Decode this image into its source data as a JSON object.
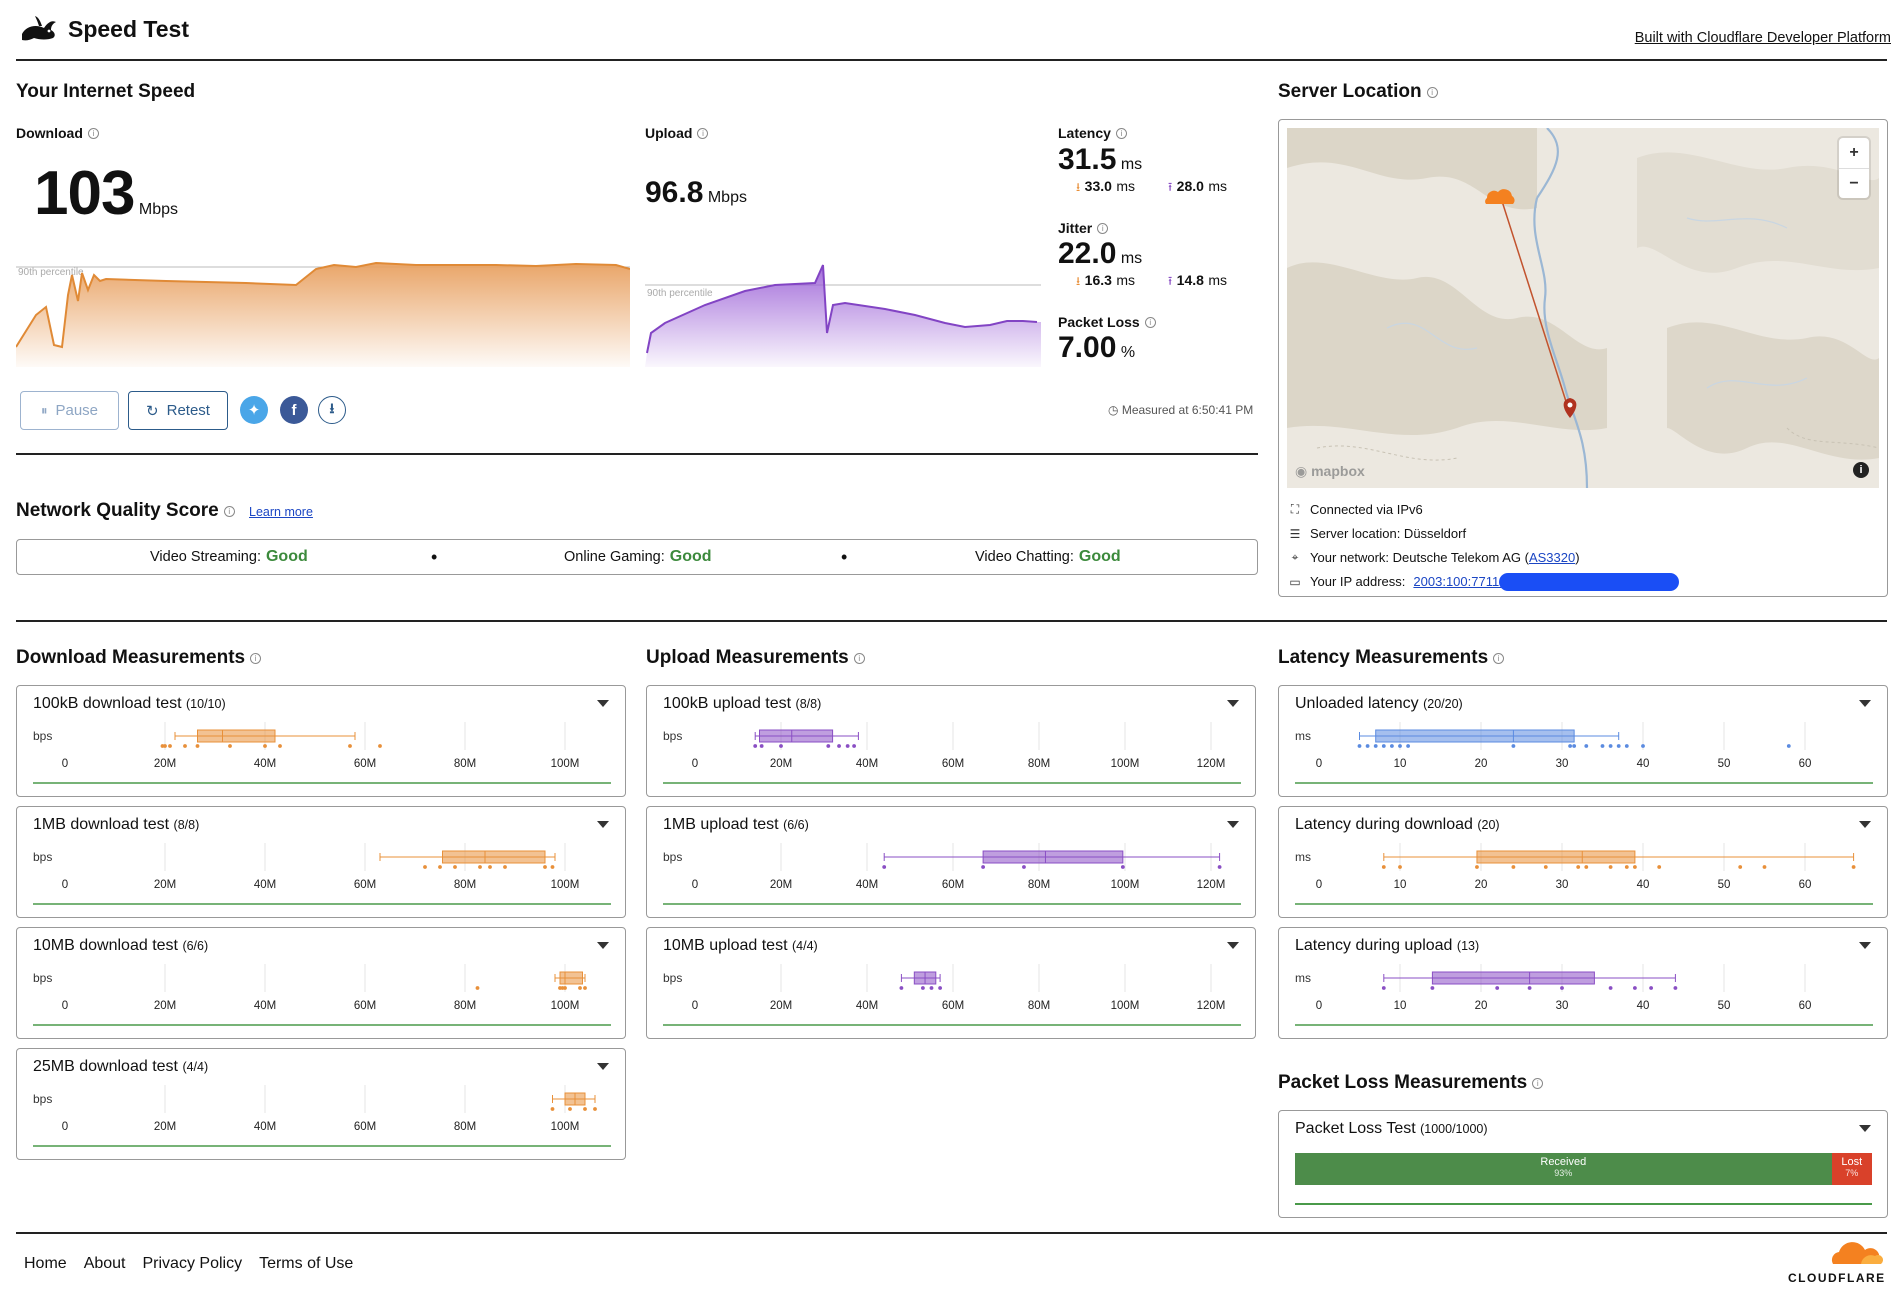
{
  "header": {
    "title": "Speed Test",
    "built_with": "Built with Cloudflare Developer Platform"
  },
  "speed": {
    "heading": "Your Internet Speed",
    "download": {
      "label": "Download",
      "value": "103",
      "unit": "Mbps",
      "p90_label": "90th percentile"
    },
    "upload": {
      "label": "Upload",
      "value": "96.8",
      "unit": "Mbps",
      "p90_label": "90th percentile"
    },
    "latency": {
      "label": "Latency",
      "value": "31.5",
      "unit": "ms",
      "down": "33.0",
      "up": "28.0",
      "sub_unit": "ms"
    },
    "jitter": {
      "label": "Jitter",
      "value": "22.0",
      "unit": "ms",
      "down": "16.3",
      "up": "14.8",
      "sub_unit": "ms"
    },
    "packet_loss": {
      "label": "Packet Loss",
      "value": "7.00",
      "unit": "%"
    },
    "measured_at": "Measured at 6:50:41 PM",
    "buttons": {
      "pause": "Pause",
      "retest": "Retest"
    }
  },
  "server": {
    "heading": "Server Location",
    "map_zoom_in": "+",
    "map_zoom_out": "−",
    "map_attrib": "mapbox",
    "connected": "Connected via IPv6",
    "location": "Server location: Düsseldorf",
    "network_prefix": "Your network: Deutsche Telekom AG (",
    "network_link": "AS3320",
    "network_suffix": ")",
    "ip_label": "Your IP address:",
    "ip_value": "2003:100:7711:"
  },
  "nqs": {
    "heading": "Network Quality Score",
    "learn_more": "Learn more",
    "items": [
      {
        "label": "Video Streaming:",
        "value": "Good"
      },
      {
        "label": "Online Gaming:",
        "value": "Good"
      },
      {
        "label": "Video Chatting:",
        "value": "Good"
      }
    ]
  },
  "sections": {
    "download": "Download Measurements",
    "upload": "Upload Measurements",
    "latency": "Latency Measurements",
    "packet_loss": "Packet Loss Measurements"
  },
  "cards": {
    "dl100k": {
      "title": "100kB download test",
      "count": "(10/10)",
      "unit": "bps"
    },
    "dl1m": {
      "title": "1MB download test",
      "count": "(8/8)",
      "unit": "bps"
    },
    "dl10m": {
      "title": "10MB download test",
      "count": "(6/6)",
      "unit": "bps"
    },
    "dl25m": {
      "title": "25MB download test",
      "count": "(4/4)",
      "unit": "bps"
    },
    "ul100k": {
      "title": "100kB upload test",
      "count": "(8/8)",
      "unit": "bps"
    },
    "ul1m": {
      "title": "1MB upload test",
      "count": "(6/6)",
      "unit": "bps"
    },
    "ul10m": {
      "title": "10MB upload test",
      "count": "(4/4)",
      "unit": "bps"
    },
    "lat0": {
      "title": "Unloaded latency",
      "count": "(20/20)",
      "unit": "ms"
    },
    "latd": {
      "title": "Latency during download",
      "count": "(20)",
      "unit": "ms"
    },
    "latu": {
      "title": "Latency during upload",
      "count": "(13)",
      "unit": "ms"
    },
    "pl": {
      "title": "Packet Loss Test",
      "count": "(1000/1000)",
      "received": "Received",
      "received_pct": "93%",
      "lost": "Lost",
      "lost_pct": "7%",
      "received_fraction": 0.93
    }
  },
  "axes": {
    "dl": [
      "0",
      "20M",
      "40M",
      "60M",
      "80M",
      "100M"
    ],
    "ul": [
      "0",
      "20M",
      "40M",
      "60M",
      "80M",
      "100M",
      "120M"
    ],
    "lat": [
      "0",
      "10",
      "20",
      "30",
      "40",
      "50",
      "60"
    ]
  },
  "colors": {
    "download": "#e8903a",
    "upload": "#8a4fc4",
    "latency": "#5b8be0",
    "good": "#3c8a3c",
    "received": "#4d8c4a",
    "lost": "#d9412a",
    "brand": "#f48120"
  },
  "footer": {
    "links": [
      "Home",
      "About",
      "Privacy Policy",
      "Terms of Use"
    ],
    "brand": "CLOUDFLARE"
  }
}
